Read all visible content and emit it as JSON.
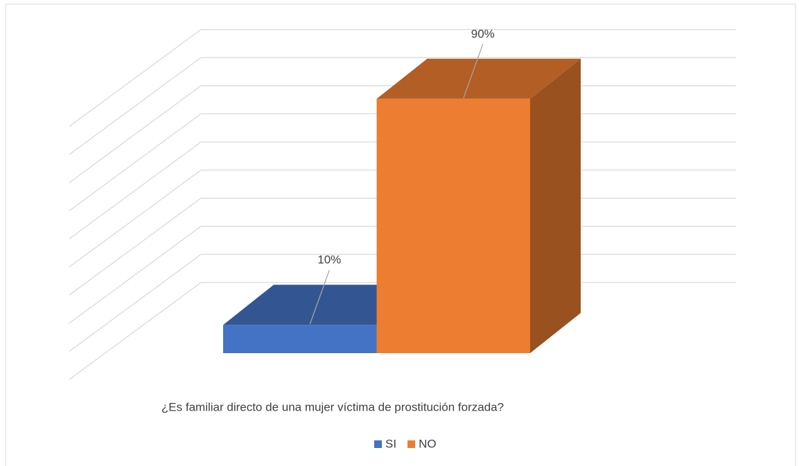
{
  "chart_data": {
    "type": "bar3d",
    "categories": [
      "¿Es familiar directo de una mujer víctima de prostitución forzada?"
    ],
    "series": [
      {
        "name": "SI",
        "color": "#4472c4",
        "values": [
          10
        ],
        "value_labels": [
          "10%"
        ]
      },
      {
        "name": "NO",
        "color": "#ed7d31",
        "values": [
          90
        ],
        "value_labels": [
          "90%"
        ]
      }
    ],
    "ylim": [
      0,
      100
    ],
    "yticks": [
      0,
      10,
      20,
      30,
      40,
      50,
      60,
      70,
      80,
      90
    ],
    "grid": true,
    "legend": "bottom"
  }
}
